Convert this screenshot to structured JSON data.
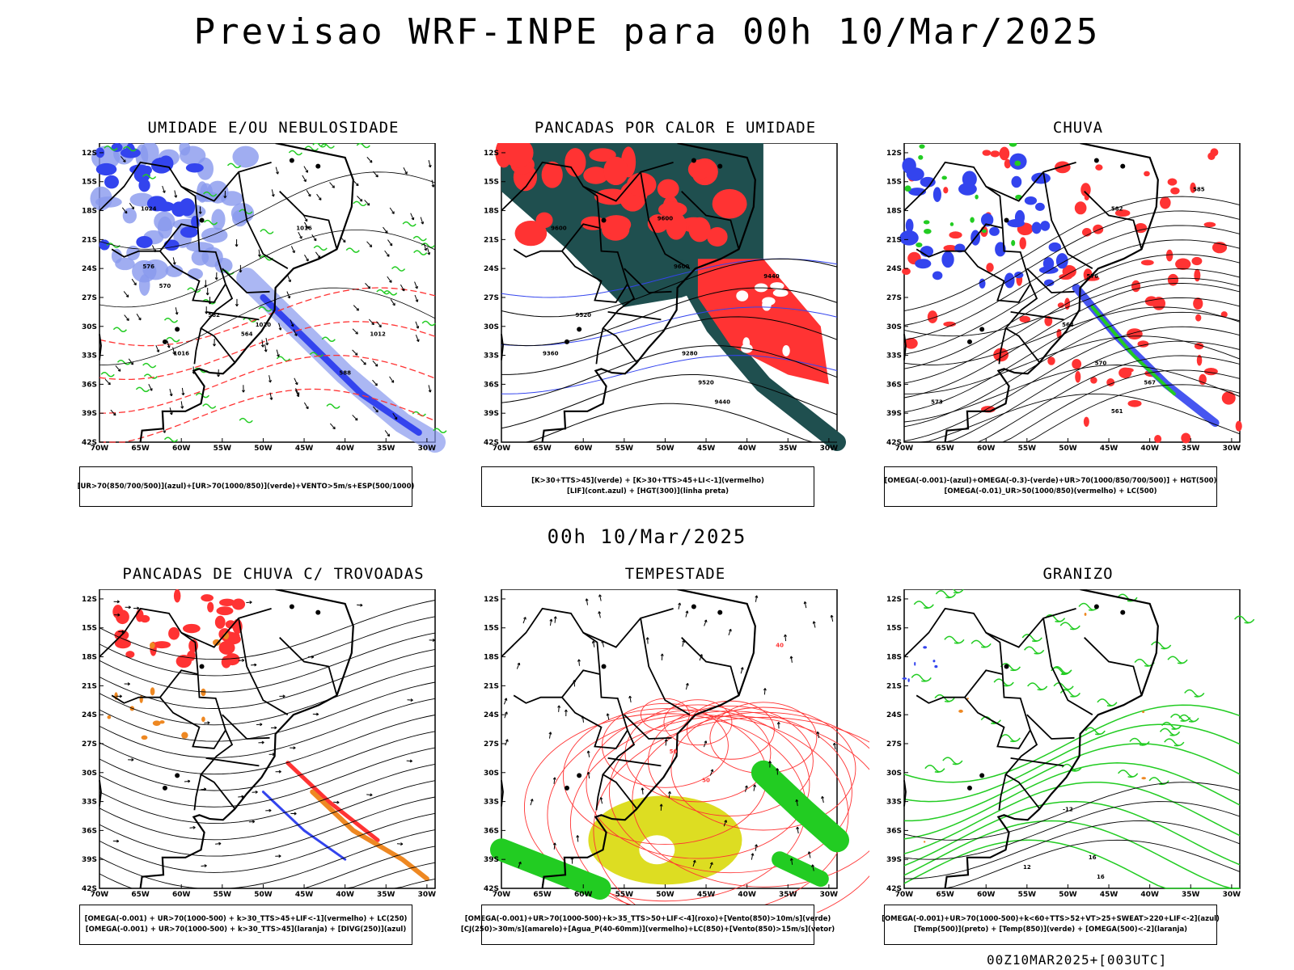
{
  "header": {
    "title": "Previsao WRF-INPE  para 00h 10/Mar/2025",
    "mid_date": "00h 10/Mar/2025",
    "footer_id": "00Z10MAR2025+[003UTC]"
  },
  "axes": {
    "lat_labels": [
      "12S",
      "15S",
      "18S",
      "21S",
      "24S",
      "27S",
      "30S",
      "33S",
      "36S",
      "39S",
      "42S"
    ],
    "lon_labels": [
      "70W",
      "65W",
      "60W",
      "55W",
      "50W",
      "45W",
      "40W",
      "35W",
      "30W"
    ]
  },
  "panels": [
    {
      "id": "umidade",
      "title": "UMIDADE E/OU NEBULOSIDADE",
      "legend": [
        "[UR>70(850/700/500)](azul)+[UR>70(1000/850)](verde)+VENTO>5m/s+ESP(500/1000)"
      ],
      "contour_labels": [
        "1016",
        "1020",
        "1012",
        "1016",
        "1024",
        "570",
        "576",
        "588",
        "582",
        "564"
      ]
    },
    {
      "id": "pancadas",
      "title": "PANCADAS POR CALOR E UMIDADE",
      "legend": [
        "[K>30+TTS>45](verde) + [K>30+TTS>45+LI<-1](vermelho)",
        "[LIF](cont.azul) + [HGT(300)](linha preta)"
      ],
      "contour_labels": [
        "9600",
        "9600",
        "9600",
        "9520",
        "9440",
        "9360",
        "9280",
        "9520",
        "9440"
      ]
    },
    {
      "id": "chuva",
      "title": "CHUVA",
      "legend": [
        "[OMEGA(-0.001)-(azul)+OMEGA(-0.3)-(verde)+UR>70(1000/850/700/500)] + HGT(500)",
        "[OMEGA(-0.01)_UR>50(1000/850)(vermelho) + LC(500)"
      ],
      "contour_labels": [
        "585",
        "582",
        "576",
        "570",
        "573",
        "567",
        "564",
        "561"
      ]
    },
    {
      "id": "trovoadas",
      "title": "PANCADAS DE CHUVA C/ TROVOADAS",
      "legend": [
        "[OMEGA(-0.001) + UR>70(1000-500) + k>30_TTS>45+LIF<-1](vermelho) + LC(250)",
        "[OMEGA(-0.001) + UR>70(1000-500) + k>30_TTS>45](laranja) + [DIVG(250)](azul)"
      ],
      "contour_labels": []
    },
    {
      "id": "tempestade",
      "title": "TEMPESTADE",
      "legend": [
        "[OMEGA(-0.001)+UR>70(1000-500)+k>35_TTS>50+LIF<-4](roxo)+[Vento(850)>10m/s](verde)",
        "[CJ(250)>30m/s](amarelo)+[Agua_P(40-60mm)](vermelho)+LC(850)+[Vento(850)>15m/s](vetor)"
      ],
      "contour_labels": [
        "50",
        "50",
        "40"
      ]
    },
    {
      "id": "granizo",
      "title": "GRANIZO",
      "legend": [
        "[OMEGA(-0.001)+UR>70(1000-500)+k<60+TTS>52+VT>25+SWEAT>220+LIF<-2](azul)",
        "[Temp(500)](preto) + [Temp(850)](verde) + [OMEGA(500)<-2](laranja)"
      ],
      "contour_labels": [
        "-12",
        "16",
        "12",
        "16"
      ]
    }
  ],
  "colors": {
    "green": "#22cc22",
    "red": "#ff3333",
    "blue": "#3344ee",
    "lightblue": "#8899ee",
    "orange": "#ee8822",
    "yellow": "#dddd22",
    "darkteal": "#1f4f4f"
  }
}
